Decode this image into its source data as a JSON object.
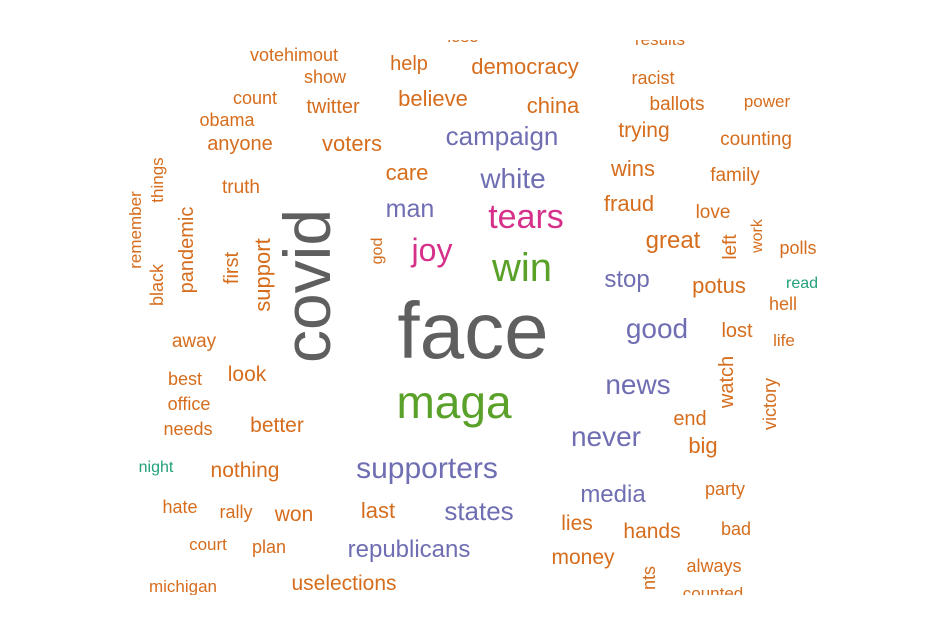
{
  "colors": {
    "gray": "#5f5f5f",
    "green": "#5aa12a",
    "purple": "#6f6eb2",
    "orange": "#d66d1d",
    "pink": "#d6308a",
    "teal": "#23a07a"
  },
  "words": [
    {
      "text": "face",
      "color": "gray"
    },
    {
      "text": "covid",
      "color": "gray"
    },
    {
      "text": "maga",
      "color": "green"
    },
    {
      "text": "win",
      "color": "green"
    },
    {
      "text": "tears",
      "color": "pink"
    },
    {
      "text": "joy",
      "color": "pink"
    },
    {
      "text": "supporters",
      "color": "purple"
    },
    {
      "text": "white",
      "color": "purple"
    },
    {
      "text": "campaign",
      "color": "purple"
    },
    {
      "text": "man",
      "color": "purple"
    },
    {
      "text": "news",
      "color": "purple"
    },
    {
      "text": "good",
      "color": "purple"
    },
    {
      "text": "never",
      "color": "purple"
    },
    {
      "text": "states",
      "color": "purple"
    },
    {
      "text": "republicans",
      "color": "purple"
    },
    {
      "text": "media",
      "color": "purple"
    },
    {
      "text": "stop",
      "color": "purple"
    },
    {
      "text": "democracy",
      "color": "orange"
    },
    {
      "text": "help",
      "color": "orange"
    },
    {
      "text": "votehimout",
      "color": "orange"
    },
    {
      "text": "show",
      "color": "orange"
    },
    {
      "text": "twitter",
      "color": "orange"
    },
    {
      "text": "believe",
      "color": "orange"
    },
    {
      "text": "china",
      "color": "orange"
    },
    {
      "text": "count",
      "color": "orange"
    },
    {
      "text": "obama",
      "color": "orange"
    },
    {
      "text": "anyone",
      "color": "orange"
    },
    {
      "text": "voters",
      "color": "orange"
    },
    {
      "text": "results",
      "color": "orange"
    },
    {
      "text": "racist",
      "color": "orange"
    },
    {
      "text": "ballots",
      "color": "orange"
    },
    {
      "text": "power",
      "color": "orange"
    },
    {
      "text": "trying",
      "color": "orange"
    },
    {
      "text": "counting",
      "color": "orange"
    },
    {
      "text": "wins",
      "color": "orange"
    },
    {
      "text": "family",
      "color": "orange"
    },
    {
      "text": "fraud",
      "color": "orange"
    },
    {
      "text": "love",
      "color": "orange"
    },
    {
      "text": "care",
      "color": "orange"
    },
    {
      "text": "truth",
      "color": "orange"
    },
    {
      "text": "things",
      "color": "orange"
    },
    {
      "text": "remember",
      "color": "orange"
    },
    {
      "text": "pandemic",
      "color": "orange"
    },
    {
      "text": "black",
      "color": "orange"
    },
    {
      "text": "first",
      "color": "orange"
    },
    {
      "text": "support",
      "color": "orange"
    },
    {
      "text": "god",
      "color": "orange"
    },
    {
      "text": "great",
      "color": "orange"
    },
    {
      "text": "left",
      "color": "orange"
    },
    {
      "text": "work",
      "color": "orange"
    },
    {
      "text": "polls",
      "color": "orange"
    },
    {
      "text": "potus",
      "color": "orange"
    },
    {
      "text": "hell",
      "color": "orange"
    },
    {
      "text": "lost",
      "color": "orange"
    },
    {
      "text": "life",
      "color": "orange"
    },
    {
      "text": "away",
      "color": "orange"
    },
    {
      "text": "best",
      "color": "orange"
    },
    {
      "text": "look",
      "color": "orange"
    },
    {
      "text": "office",
      "color": "orange"
    },
    {
      "text": "needs",
      "color": "orange"
    },
    {
      "text": "better",
      "color": "orange"
    },
    {
      "text": "watch",
      "color": "orange"
    },
    {
      "text": "victory",
      "color": "orange"
    },
    {
      "text": "end",
      "color": "orange"
    },
    {
      "text": "big",
      "color": "orange"
    },
    {
      "text": "nothing",
      "color": "orange"
    },
    {
      "text": "hate",
      "color": "orange"
    },
    {
      "text": "rally",
      "color": "orange"
    },
    {
      "text": "won",
      "color": "orange"
    },
    {
      "text": "last",
      "color": "orange"
    },
    {
      "text": "party",
      "color": "orange"
    },
    {
      "text": "lies",
      "color": "orange"
    },
    {
      "text": "hands",
      "color": "orange"
    },
    {
      "text": "bad",
      "color": "orange"
    },
    {
      "text": "court",
      "color": "orange"
    },
    {
      "text": "plan",
      "color": "orange"
    },
    {
      "text": "money",
      "color": "orange"
    },
    {
      "text": "always",
      "color": "orange"
    },
    {
      "text": "michigan",
      "color": "orange"
    },
    {
      "text": "uselections",
      "color": "orange"
    },
    {
      "text": "counted",
      "color": "orange"
    },
    {
      "text": "nts",
      "color": "orange"
    },
    {
      "text": "lose",
      "color": "orange"
    },
    {
      "text": "night",
      "color": "teal"
    },
    {
      "text": "read",
      "color": "teal"
    }
  ]
}
